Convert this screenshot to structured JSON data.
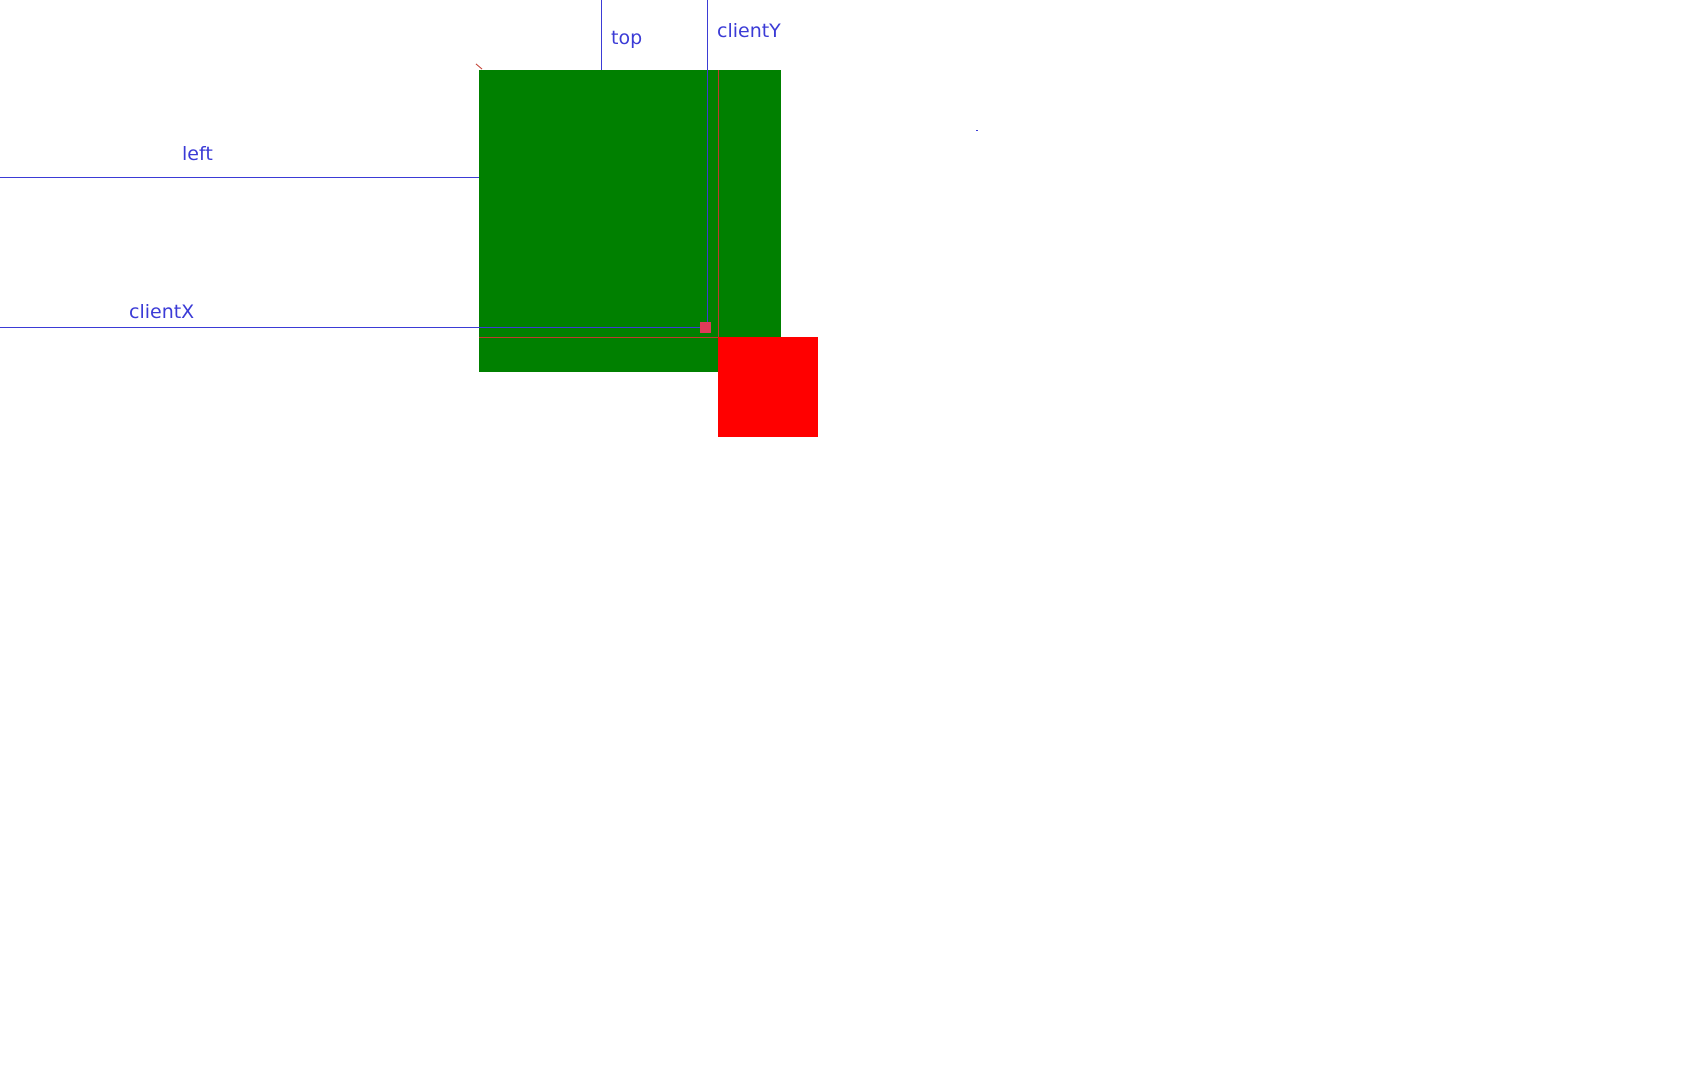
{
  "labels": {
    "left": "left",
    "top": "top",
    "clientX": "clientX",
    "clientY": "clientY"
  },
  "colors": {
    "background": "#ffffff",
    "annotation": "#3b3bd6",
    "guide_line": "#c0392b",
    "container_box": "#008000",
    "dragged_box": "#ff0000",
    "cursor_marker": "#e03b5a"
  }
}
